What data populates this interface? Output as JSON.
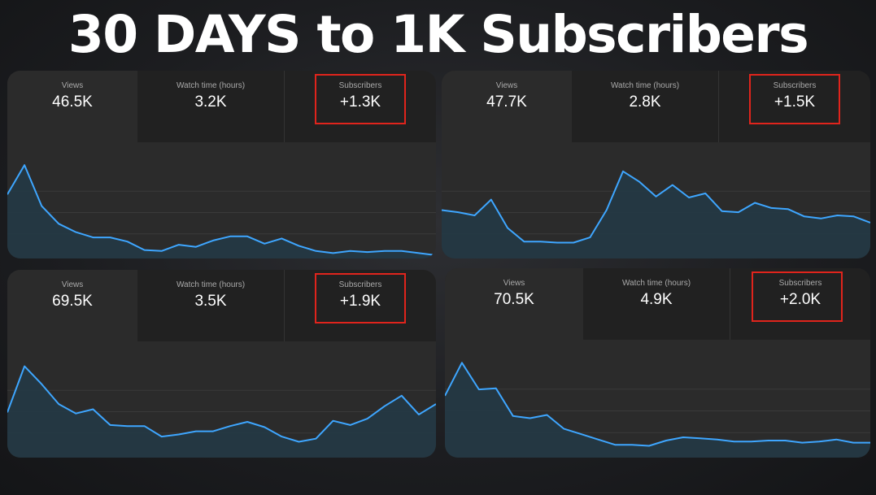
{
  "headline": "30 DAYS to 1K Subscribers",
  "colors": {
    "accent_line": "#3ea6ff",
    "highlight_box": "#e0241c",
    "panel_bg": "#2b2b2b"
  },
  "panels": [
    {
      "views_label": "Views",
      "views_value": "46.5K",
      "watch_label": "Watch time (hours)",
      "watch_value": "3.2K",
      "subs_label": "Subscribers",
      "subs_value": "+1.3K"
    },
    {
      "views_label": "Views",
      "views_value": "47.7K",
      "watch_label": "Watch time (hours)",
      "watch_value": "2.8K",
      "subs_label": "Subscribers",
      "subs_value": "+1.5K"
    },
    {
      "views_label": "Views",
      "views_value": "69.5K",
      "watch_label": "Watch time (hours)",
      "watch_value": "3.5K",
      "subs_label": "Subscribers",
      "subs_value": "+1.9K"
    },
    {
      "views_label": "Views",
      "views_value": "70.5K",
      "watch_label": "Watch time (hours)",
      "watch_value": "4.9K",
      "subs_label": "Subscribers",
      "subs_value": "+2.0K"
    }
  ],
  "chart_data": [
    {
      "type": "area",
      "values": [
        58,
        86,
        47,
        30,
        22,
        17,
        17,
        13,
        5,
        4,
        10,
        8,
        14,
        18,
        18,
        11,
        16,
        9,
        4,
        2,
        4,
        3,
        4,
        4,
        2,
        0
      ]
    },
    {
      "type": "area",
      "values": [
        43,
        41,
        38,
        53,
        26,
        13,
        13,
        12,
        12,
        17,
        43,
        80,
        70,
        56,
        67,
        55,
        59,
        42,
        41,
        50,
        45,
        44,
        37,
        35,
        38,
        37,
        31
      ]
    },
    {
      "type": "area",
      "values": [
        40,
        84,
        67,
        48,
        39,
        43,
        28,
        27,
        27,
        17,
        19,
        22,
        22,
        27,
        31,
        26,
        17,
        12,
        15,
        32,
        28,
        34,
        46,
        56,
        38,
        48
      ]
    },
    {
      "type": "area",
      "values": [
        55,
        86,
        61,
        62,
        36,
        34,
        37,
        24,
        19,
        14,
        9,
        9,
        8,
        13,
        16,
        15,
        14,
        12,
        12,
        13,
        13,
        11,
        12,
        14,
        11,
        11
      ]
    }
  ]
}
